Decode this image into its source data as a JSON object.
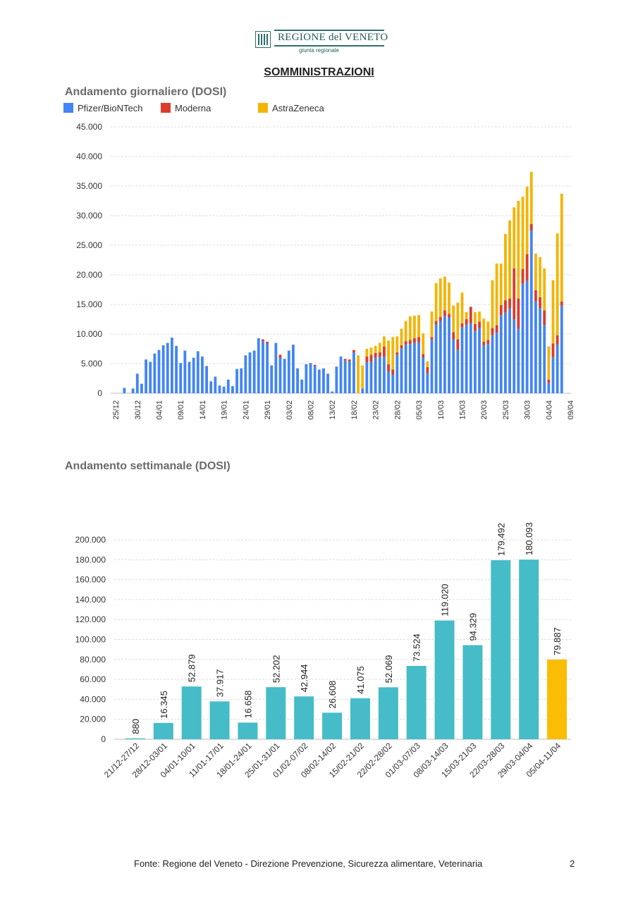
{
  "header": {
    "logo_title": "REGIONE del VENETO",
    "logo_subtitle": "giunta regionale",
    "page_title": "SOMMINISTRAZIONI"
  },
  "footer": {
    "source": "Fonte: Regione del Veneto - Direzione Prevenzione, Sicurezza alimentare, Veterinaria",
    "page_number": "2"
  },
  "chart_data": [
    {
      "type": "bar",
      "stacked": true,
      "title": "Andamento giornaliero (DOSI)",
      "xlabel": "",
      "ylabel": "",
      "ylim": [
        0,
        45000
      ],
      "yticks": [
        "0",
        "5.000",
        "10.000",
        "15.000",
        "20.000",
        "25.000",
        "30.000",
        "35.000",
        "40.000",
        "45.000"
      ],
      "grid": true,
      "legend_position": "top",
      "x_tick_labels": [
        "25/12",
        "30/12",
        "04/01",
        "09/01",
        "14/01",
        "19/01",
        "24/01",
        "29/01",
        "03/02",
        "08/02",
        "13/02",
        "18/02",
        "23/02",
        "28/02",
        "05/03",
        "10/03",
        "15/03",
        "20/03",
        "25/03",
        "30/03",
        "04/04",
        "09/04"
      ],
      "x_tick_step": 5,
      "series": [
        {
          "name": "Pfizer/BioNTech",
          "color": "#4285F4",
          "values": [
            0,
            0,
            900,
            0,
            800,
            3300,
            1600,
            5700,
            5300,
            6700,
            7300,
            8100,
            8500,
            9400,
            8000,
            5100,
            7200,
            5300,
            6000,
            7100,
            6200,
            4600,
            2000,
            2800,
            1300,
            1100,
            2300,
            1200,
            4100,
            4200,
            6400,
            6900,
            7200,
            9300,
            8800,
            8400,
            4700,
            8500,
            6000,
            5800,
            7200,
            8200,
            4200,
            2300,
            4900,
            5100,
            4600,
            4000,
            4200,
            3300,
            300,
            4500,
            6200,
            5500,
            5400,
            6900,
            0,
            800,
            5200,
            5300,
            6000,
            6100,
            6200,
            3700,
            3100,
            6500,
            7600,
            8200,
            8300,
            8500,
            8600,
            6000,
            3400,
            9100,
            11600,
            12200,
            13000,
            12800,
            9100,
            7300,
            11100,
            11600,
            11800,
            10500,
            11000,
            8100,
            8300,
            9800,
            10200,
            13200,
            13600,
            14300,
            12500,
            10900,
            18500,
            19000,
            27500,
            15500,
            14400,
            11500,
            1700,
            6100,
            8200,
            14800,
            0
          ]
        },
        {
          "name": "Moderna",
          "color": "#DB3D2A",
          "values": [
            0,
            0,
            0,
            0,
            0,
            0,
            0,
            0,
            0,
            0,
            0,
            0,
            0,
            0,
            0,
            0,
            0,
            0,
            0,
            0,
            0,
            0,
            0,
            0,
            0,
            0,
            0,
            0,
            0,
            0,
            0,
            0,
            0,
            0,
            300,
            300,
            0,
            0,
            500,
            0,
            0,
            0,
            0,
            0,
            0,
            0,
            200,
            0,
            0,
            0,
            0,
            0,
            0,
            300,
            300,
            400,
            0,
            0,
            1000,
            1200,
            800,
            800,
            1700,
            1200,
            900,
            400,
            500,
            600,
            700,
            800,
            900,
            600,
            1000,
            400,
            600,
            700,
            1000,
            600,
            1200,
            1800,
            700,
            900,
            2800,
            1200,
            1100,
            600,
            700,
            1200,
            1300,
            1700,
            2100,
            1700,
            8600,
            5100,
            2500,
            4500,
            1100,
            1900,
            1800,
            2500,
            600,
            2300,
            1600,
            700,
            0
          ]
        },
        {
          "name": "AstraZeneca",
          "color": "#F4B400",
          "values": [
            0,
            0,
            0,
            0,
            0,
            0,
            0,
            0,
            0,
            0,
            0,
            0,
            0,
            0,
            0,
            0,
            0,
            0,
            0,
            0,
            0,
            0,
            0,
            0,
            0,
            0,
            0,
            0,
            0,
            0,
            0,
            0,
            0,
            0,
            0,
            0,
            0,
            0,
            0,
            0,
            0,
            0,
            0,
            0,
            0,
            0,
            0,
            0,
            0,
            0,
            0,
            0,
            0,
            0,
            0,
            0,
            6400,
            3900,
            1300,
            1200,
            1200,
            1600,
            1700,
            4000,
            5500,
            2700,
            2800,
            3400,
            4000,
            3800,
            3700,
            3500,
            1000,
            4300,
            6400,
            6500,
            5700,
            5300,
            4500,
            6200,
            5200,
            1200,
            0,
            2000,
            1700,
            3900,
            3100,
            8100,
            10400,
            7000,
            11200,
            13200,
            10300,
            16500,
            12200,
            11400,
            8800,
            6200,
            6800,
            7100,
            5600,
            10700,
            17200,
            18200,
            0
          ]
        }
      ]
    },
    {
      "type": "bar",
      "title": "Andamento settimanale (DOSI)",
      "xlabel": "",
      "ylabel": "",
      "ylim": [
        0,
        200000
      ],
      "yticks": [
        "0",
        "20.000",
        "40.000",
        "60.000",
        "80.000",
        "100.000",
        "120.000",
        "140.000",
        "160.000",
        "180.000",
        "200.000"
      ],
      "grid": true,
      "categories": [
        "21/12-27/12",
        "28/12-03/01",
        "04/01-10/01",
        "11/01-17/01",
        "18/01-24/01",
        "25/01-31/01",
        "01/02-07/02",
        "08/02-14/02",
        "15/02-21/02",
        "22/02-28/02",
        "01/03-07/03",
        "08/03-14/03",
        "15/03-21/03",
        "22/03-28/03",
        "29/03-04/04",
        "05/04-11/04"
      ],
      "values": [
        880,
        16345,
        52879,
        37917,
        16658,
        52202,
        42944,
        26608,
        41075,
        52069,
        73524,
        119020,
        94329,
        179492,
        180093,
        79887
      ],
      "value_labels": [
        "880",
        "16.345",
        "52.879",
        "37.917",
        "16.658",
        "52.202",
        "42.944",
        "26.608",
        "41.075",
        "52.069",
        "73.524",
        "119.020",
        "94.329",
        "179.492",
        "180.093",
        "79.887"
      ],
      "colors": [
        "#45BCC8",
        "#45BCC8",
        "#45BCC8",
        "#45BCC8",
        "#45BCC8",
        "#45BCC8",
        "#45BCC8",
        "#45BCC8",
        "#45BCC8",
        "#45BCC8",
        "#45BCC8",
        "#45BCC8",
        "#45BCC8",
        "#45BCC8",
        "#45BCC8",
        "#FBBC04"
      ]
    }
  ]
}
